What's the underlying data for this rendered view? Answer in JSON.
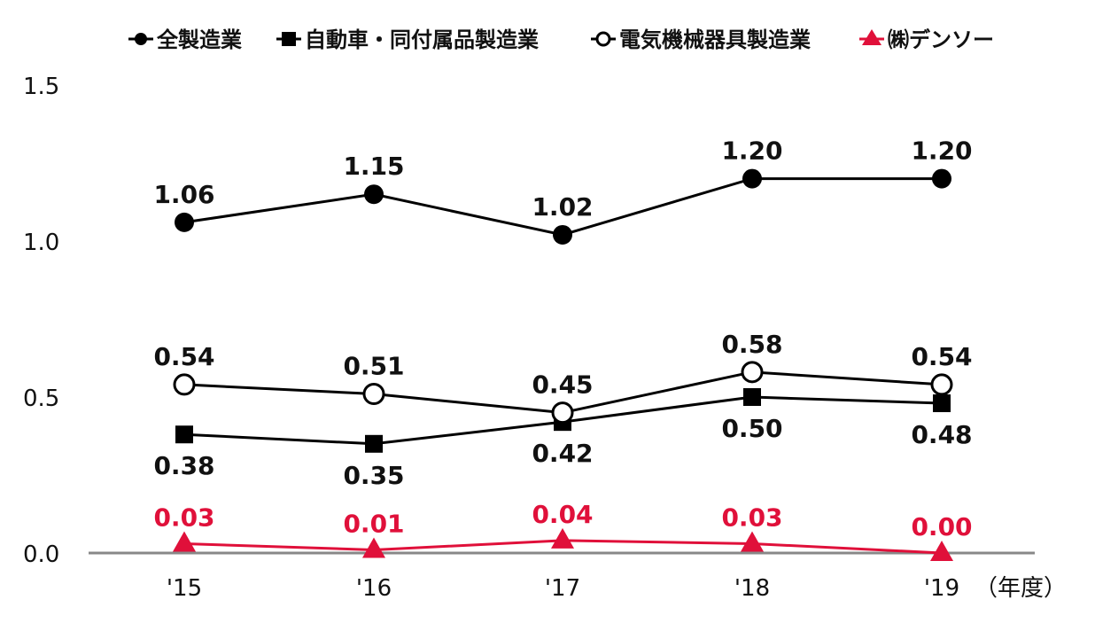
{
  "chart_data": {
    "type": "line",
    "categories": [
      "'15",
      "'16",
      "'17",
      "'18",
      "'19"
    ],
    "xlabel": "（年度）",
    "ylim": [
      0,
      1.5
    ],
    "yticks": [
      "0.0",
      "0.5",
      "1.0",
      "1.5"
    ],
    "ytick_values": [
      0,
      0.5,
      1.0,
      1.5
    ],
    "legend_position": "top",
    "series": [
      {
        "name": "全製造業",
        "marker": "filled-circle",
        "color": "#000000",
        "values": [
          1.06,
          1.15,
          1.02,
          1.2,
          1.2
        ],
        "labels": [
          "1.06",
          "1.15",
          "1.02",
          "1.20",
          "1.20"
        ]
      },
      {
        "name": "自動車・同付属品製造業",
        "marker": "filled-square",
        "color": "#000000",
        "values": [
          0.38,
          0.35,
          0.42,
          0.5,
          0.48
        ],
        "labels": [
          "0.38",
          "0.35",
          "0.42",
          "0.50",
          "0.48"
        ]
      },
      {
        "name": "電気機械器具製造業",
        "marker": "open-circle",
        "color": "#000000",
        "values": [
          0.54,
          0.51,
          0.45,
          0.58,
          0.54
        ],
        "labels": [
          "0.54",
          "0.51",
          "0.45",
          "0.58",
          "0.54"
        ]
      },
      {
        "name": "㈱デンソー",
        "marker": "triangle",
        "color": "#e0103a",
        "values": [
          0.03,
          0.01,
          0.04,
          0.03,
          0.0
        ],
        "labels": [
          "0.03",
          "0.01",
          "0.04",
          "0.03",
          "0.00"
        ]
      }
    ]
  }
}
